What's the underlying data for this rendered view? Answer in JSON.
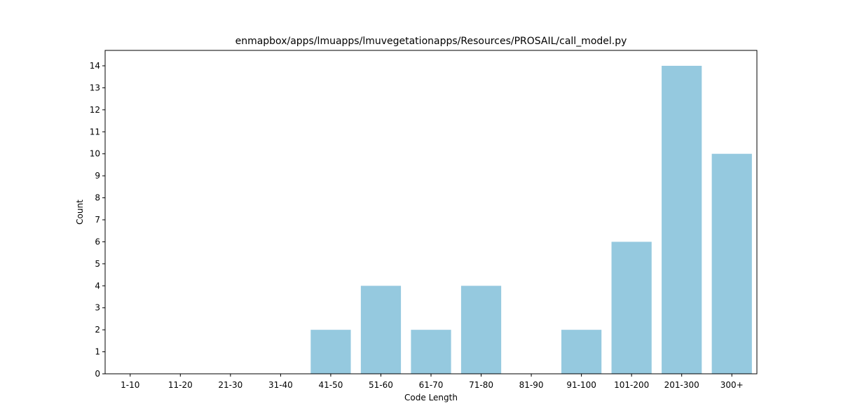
{
  "chart_data": {
    "type": "bar",
    "title": "enmapbox/apps/lmuapps/lmuvegetationapps/Resources/PROSAIL/call_model.py",
    "xlabel": "Code Length",
    "ylabel": "Count",
    "categories": [
      "1-10",
      "11-20",
      "21-30",
      "31-40",
      "41-50",
      "51-60",
      "61-70",
      "71-80",
      "81-90",
      "91-100",
      "101-200",
      "201-300",
      "300+"
    ],
    "values": [
      0,
      0,
      0,
      0,
      2,
      4,
      2,
      4,
      0,
      2,
      6,
      14,
      10
    ],
    "ylim": [
      0,
      14.7
    ],
    "yticks": [
      0,
      1,
      2,
      3,
      4,
      5,
      6,
      7,
      8,
      9,
      10,
      11,
      12,
      13,
      14
    ],
    "bar_color": "#95c9df",
    "grid": false,
    "legend": "none"
  }
}
